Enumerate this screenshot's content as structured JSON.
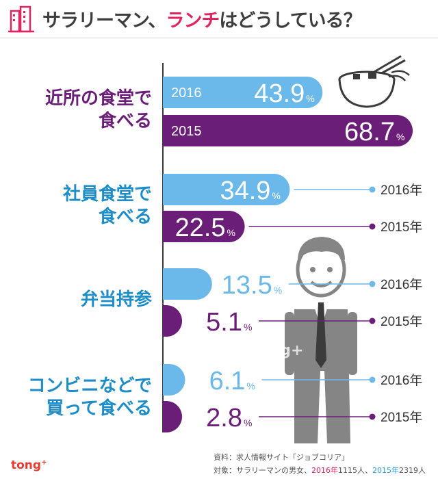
{
  "title": {
    "part1": "サラリーマン、",
    "part2": "ランチ",
    "part3": "はどうしている？"
  },
  "colors": {
    "y2016": "#6bb9ea",
    "y2015": "#6b1e78",
    "title_accent": "#e0245e",
    "cat_purple": "#6b1e78",
    "cat_blue": "#1c8dc9",
    "figure": "#858585"
  },
  "labels": {
    "y2016": "2016",
    "y2015": "2015",
    "y2016_full": "2016年",
    "y2015_full": "2015年",
    "unit": "%"
  },
  "categories": [
    {
      "line1": "近所の食堂で",
      "line2": "食べる",
      "color": "#6b1e78"
    },
    {
      "line1": "社員食堂で",
      "line2": "食べる",
      "color": "#1c8dc9"
    },
    {
      "line1": "弁当持参",
      "line2": "",
      "color": "#1c8dc9"
    },
    {
      "line1": "コンビニなどで",
      "line2": "買って食べる",
      "color": "#1c8dc9"
    }
  ],
  "chart_data": {
    "type": "bar",
    "categories": [
      "近所の食堂で食べる",
      "社員食堂で食べる",
      "弁当持参",
      "コンビニなどで買って食べる"
    ],
    "series": [
      {
        "name": "2016年",
        "values": [
          43.9,
          34.9,
          13.5,
          6.1
        ]
      },
      {
        "name": "2015年",
        "values": [
          68.7,
          22.5,
          5.1,
          2.8
        ]
      }
    ],
    "value_unit": "%"
  },
  "footer": {
    "source": "資料：求人情報サイト「ジョブコリア」",
    "subject_prefix": "対象：サラリーマンの男女、",
    "subject_2016": "2016年",
    "subject_2016_n": "1115人、",
    "subject_2015": "2015年",
    "subject_2015_n": "2319人",
    "logo": "tong",
    "logo_plus": "+",
    "watermark": "tong+"
  }
}
